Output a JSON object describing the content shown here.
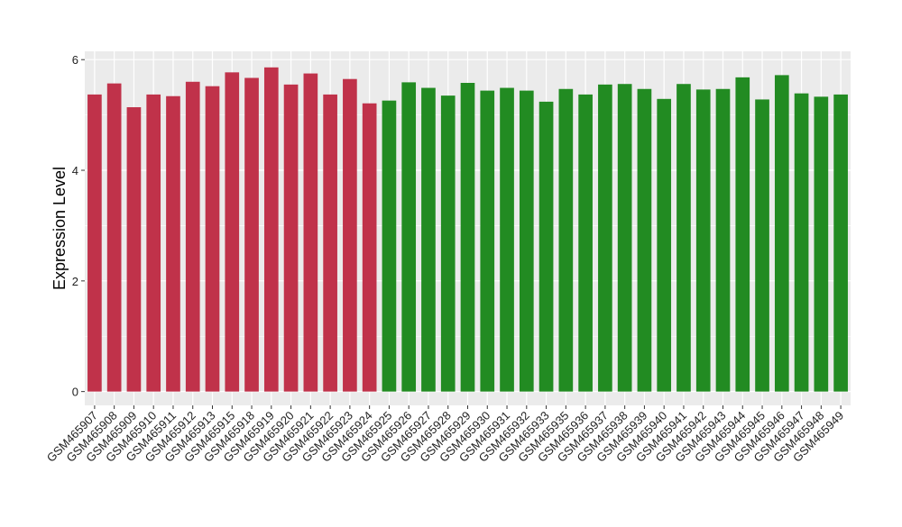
{
  "chart_data": {
    "type": "bar",
    "title": "",
    "xlabel": "",
    "ylabel": "Expression Level",
    "ylim": [
      -0.25,
      6.15
    ],
    "yticks": [
      0,
      2,
      4,
      6
    ],
    "grid": true,
    "legend": "none",
    "categories": [
      "GSM465907",
      "GSM465908",
      "GSM465909",
      "GSM465910",
      "GSM465911",
      "GSM465912",
      "GSM465913",
      "GSM465915",
      "GSM465918",
      "GSM465919",
      "GSM465920",
      "GSM465921",
      "GSM465922",
      "GSM465923",
      "GSM465924",
      "GSM465925",
      "GSM465926",
      "GSM465927",
      "GSM465928",
      "GSM465929",
      "GSM465930",
      "GSM465931",
      "GSM465932",
      "GSM465933",
      "GSM465935",
      "GSM465936",
      "GSM465937",
      "GSM465938",
      "GSM465939",
      "GSM465940",
      "GSM465941",
      "GSM465942",
      "GSM465943",
      "GSM465944",
      "GSM465945",
      "GSM465946",
      "GSM465947",
      "GSM465948",
      "GSM465949"
    ],
    "values": [
      5.37,
      5.57,
      5.14,
      5.37,
      5.34,
      5.6,
      5.52,
      5.77,
      5.67,
      5.86,
      5.55,
      5.75,
      5.37,
      5.65,
      5.21,
      5.26,
      5.59,
      5.49,
      5.35,
      5.58,
      5.44,
      5.49,
      5.44,
      5.24,
      5.47,
      5.37,
      5.55,
      5.56,
      5.47,
      5.29,
      5.56,
      5.46,
      5.47,
      5.68,
      5.28,
      5.72,
      5.39,
      5.33,
      5.37
    ],
    "group_counts": [
      15,
      24
    ],
    "colors": [
      "#c0324a",
      "#228b22"
    ],
    "panel_bg": "#ebebeb",
    "grid_color": "#ffffff"
  }
}
